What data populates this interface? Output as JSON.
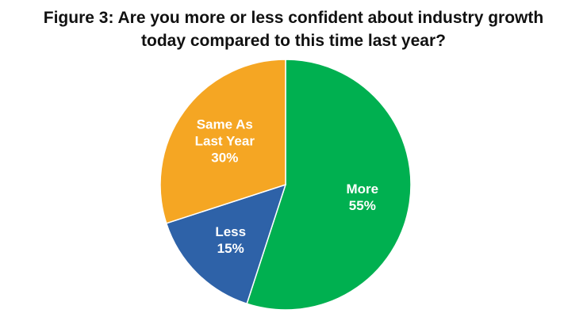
{
  "chart_data": {
    "type": "pie",
    "title": "Figure 3: Are you more or less confident about industry growth today compared to this time last year?",
    "title_lines": [
      "Figure 3: Are you more or less confident about industry growth",
      "today compared to this time last year?"
    ],
    "start_angle_deg": 0,
    "direction": "clockwise",
    "legend": "none",
    "slices": [
      {
        "label": "More",
        "value": 55,
        "value_label": "55%",
        "color": "#00b050",
        "label_lines": [
          "More",
          "55%"
        ]
      },
      {
        "label": "Less",
        "value": 15,
        "value_label": "15%",
        "color": "#2e62a8",
        "label_lines": [
          "Less",
          "15%"
        ]
      },
      {
        "label": "Same As Last Year",
        "value": 30,
        "value_label": "30%",
        "color": "#f5a623",
        "label_lines": [
          "Same As",
          "Last Year",
          "30%"
        ]
      }
    ]
  }
}
